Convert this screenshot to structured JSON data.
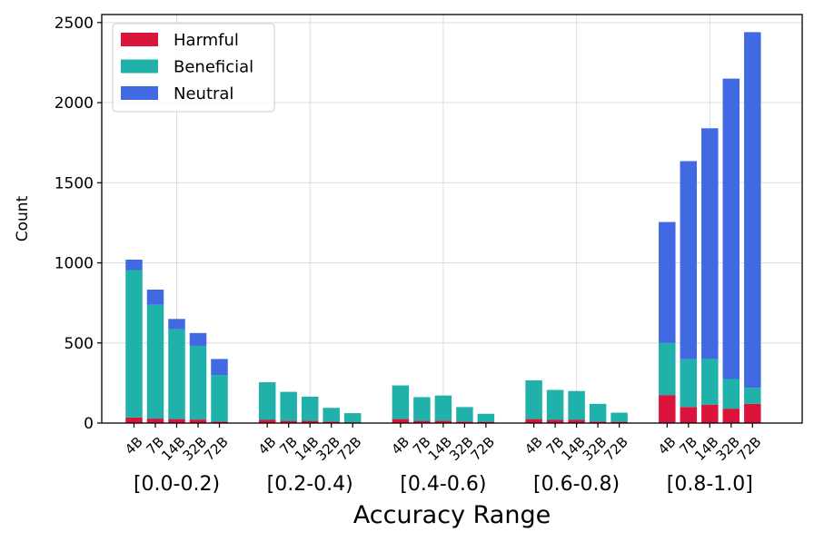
{
  "chart_data": {
    "type": "bar",
    "stacked": true,
    "title": "",
    "xlabel": "Accuracy Range",
    "ylabel": "Count",
    "ylim": [
      0,
      2550
    ],
    "yticks": [
      0,
      500,
      1000,
      1500,
      2000,
      2500
    ],
    "grid": true,
    "legend_position": "top-left",
    "groups": [
      "[0.0-0.2)",
      "[0.2-0.4)",
      "[0.4-0.6)",
      "[0.6-0.8)",
      "[0.8-1.0]"
    ],
    "models": [
      "4B",
      "7B",
      "14B",
      "32B",
      "72B"
    ],
    "series": [
      {
        "name": "Harmful",
        "color": "#dc143c",
        "values": [
          [
            35,
            28,
            25,
            22,
            10
          ],
          [
            20,
            15,
            15,
            10,
            5
          ],
          [
            25,
            15,
            15,
            10,
            8
          ],
          [
            25,
            20,
            20,
            10,
            8
          ],
          [
            175,
            100,
            115,
            90,
            120
          ]
        ]
      },
      {
        "name": "Beneficial",
        "color": "#20b2aa",
        "values": [
          [
            920,
            710,
            560,
            460,
            290
          ],
          [
            235,
            180,
            150,
            85,
            57
          ],
          [
            210,
            147,
            157,
            90,
            50
          ],
          [
            242,
            187,
            180,
            110,
            57
          ],
          [
            325,
            300,
            285,
            185,
            100
          ]
        ]
      },
      {
        "name": "Neutral",
        "color": "#4169e1",
        "values": [
          [
            65,
            95,
            65,
            80,
            100
          ],
          [
            0,
            0,
            0,
            0,
            0
          ],
          [
            0,
            0,
            0,
            0,
            0
          ],
          [
            0,
            0,
            0,
            0,
            0
          ],
          [
            755,
            1235,
            1440,
            1875,
            2220
          ]
        ]
      }
    ]
  }
}
